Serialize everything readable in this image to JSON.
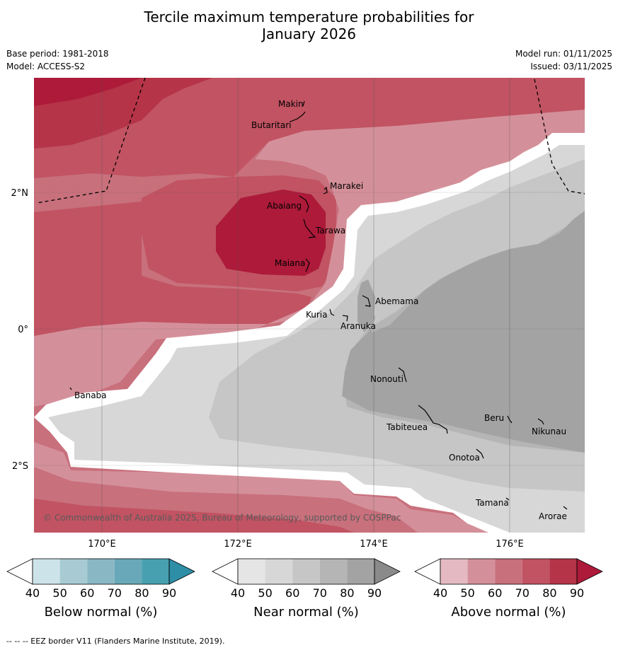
{
  "title_line1": "Tercile maximum temperature probabilities for",
  "title_line2": "January 2026",
  "base_period": "Base period: 1981-2018",
  "model": "Model: ACCESS-S2",
  "model_run": "Model run: 01/11/2025",
  "issued": "Issued: 03/11/2025",
  "lat_labels": [
    "2°N",
    "0°",
    "2°S"
  ],
  "lon_labels": [
    "170°E",
    "172°E",
    "174°E",
    "176°E"
  ],
  "copyright": "© Commonwealth of Australia 2025, Bureau of Meteorology, supported by COSPPac",
  "places": [
    "Makin",
    "Butaritari",
    "Marakei",
    "Abaiang",
    "Tarawa",
    "Maiana",
    "Abemama",
    "Kuria",
    "Aranuka",
    "Nonouti",
    "Banaba",
    "Tabiteuea",
    "Beru",
    "Nikunau",
    "Onotoa",
    "Tamana",
    "Arorae"
  ],
  "colorbars": [
    {
      "label": "Below normal (%)",
      "ticks": [
        "40",
        "50",
        "60",
        "70",
        "80",
        "90"
      ],
      "colors": [
        "#ffffff",
        "#cde3ea",
        "#a8cbd3",
        "#8ab7c4",
        "#68a8b8",
        "#47a0b0",
        "#2e8ea6"
      ]
    },
    {
      "label": "Near normal (%)",
      "ticks": [
        "40",
        "50",
        "60",
        "70",
        "80",
        "90"
      ],
      "colors": [
        "#ffffff",
        "#e5e5e5",
        "#d7d7d7",
        "#c6c6c6",
        "#b5b5b5",
        "#a3a3a3",
        "#8a8a8a"
      ]
    },
    {
      "label": "Above normal (%)",
      "ticks": [
        "40",
        "50",
        "60",
        "70",
        "80",
        "90"
      ],
      "colors": [
        "#ffffff",
        "#e4b9c1",
        "#d4909a",
        "#c8707c",
        "#c15362",
        "#b53447",
        "#ad1a3a"
      ]
    }
  ],
  "footnote": "-- -- -- EEZ border V11 (Flanders Marine Institute, 2019)."
}
